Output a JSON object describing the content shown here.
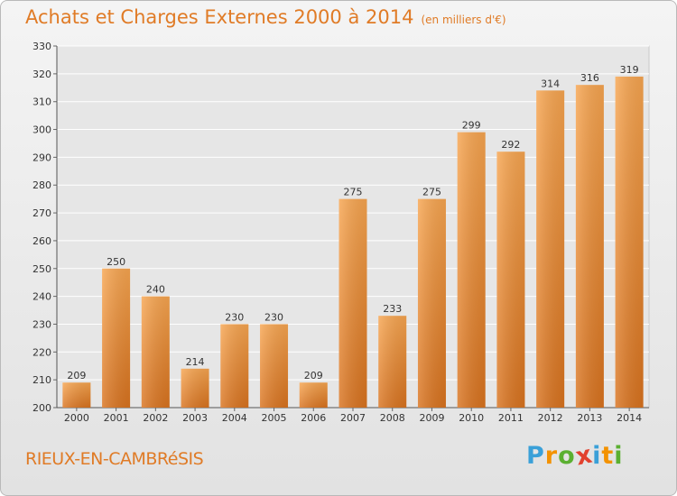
{
  "chart_data": {
    "type": "bar",
    "title": "Achats et Charges Externes 2000 à 2014",
    "subtitle": "(en milliers d'€)",
    "categories": [
      "2000",
      "2001",
      "2002",
      "2003",
      "2004",
      "2005",
      "2006",
      "2007",
      "2008",
      "2009",
      "2010",
      "2011",
      "2012",
      "2013",
      "2014"
    ],
    "values": [
      209,
      250,
      240,
      214,
      230,
      230,
      209,
      275,
      233,
      275,
      299,
      292,
      314,
      316,
      319
    ],
    "ylim": [
      200,
      330
    ],
    "yticks": [
      200,
      210,
      220,
      230,
      240,
      250,
      260,
      270,
      280,
      290,
      300,
      310,
      320,
      330
    ],
    "grid": true,
    "bar_color": "#f0913a",
    "xlabel": "",
    "ylabel": ""
  },
  "footer": {
    "town": "RIEUX-EN-CAMBRéSIS",
    "logo_letters": [
      "P",
      "r",
      "o",
      "x",
      "i",
      "t",
      "i"
    ],
    "logo_colors": [
      "#3aa0d8",
      "#f39200",
      "#5bb031",
      "#e2412e",
      "#3aa0d8",
      "#f39200",
      "#5bb031"
    ]
  }
}
